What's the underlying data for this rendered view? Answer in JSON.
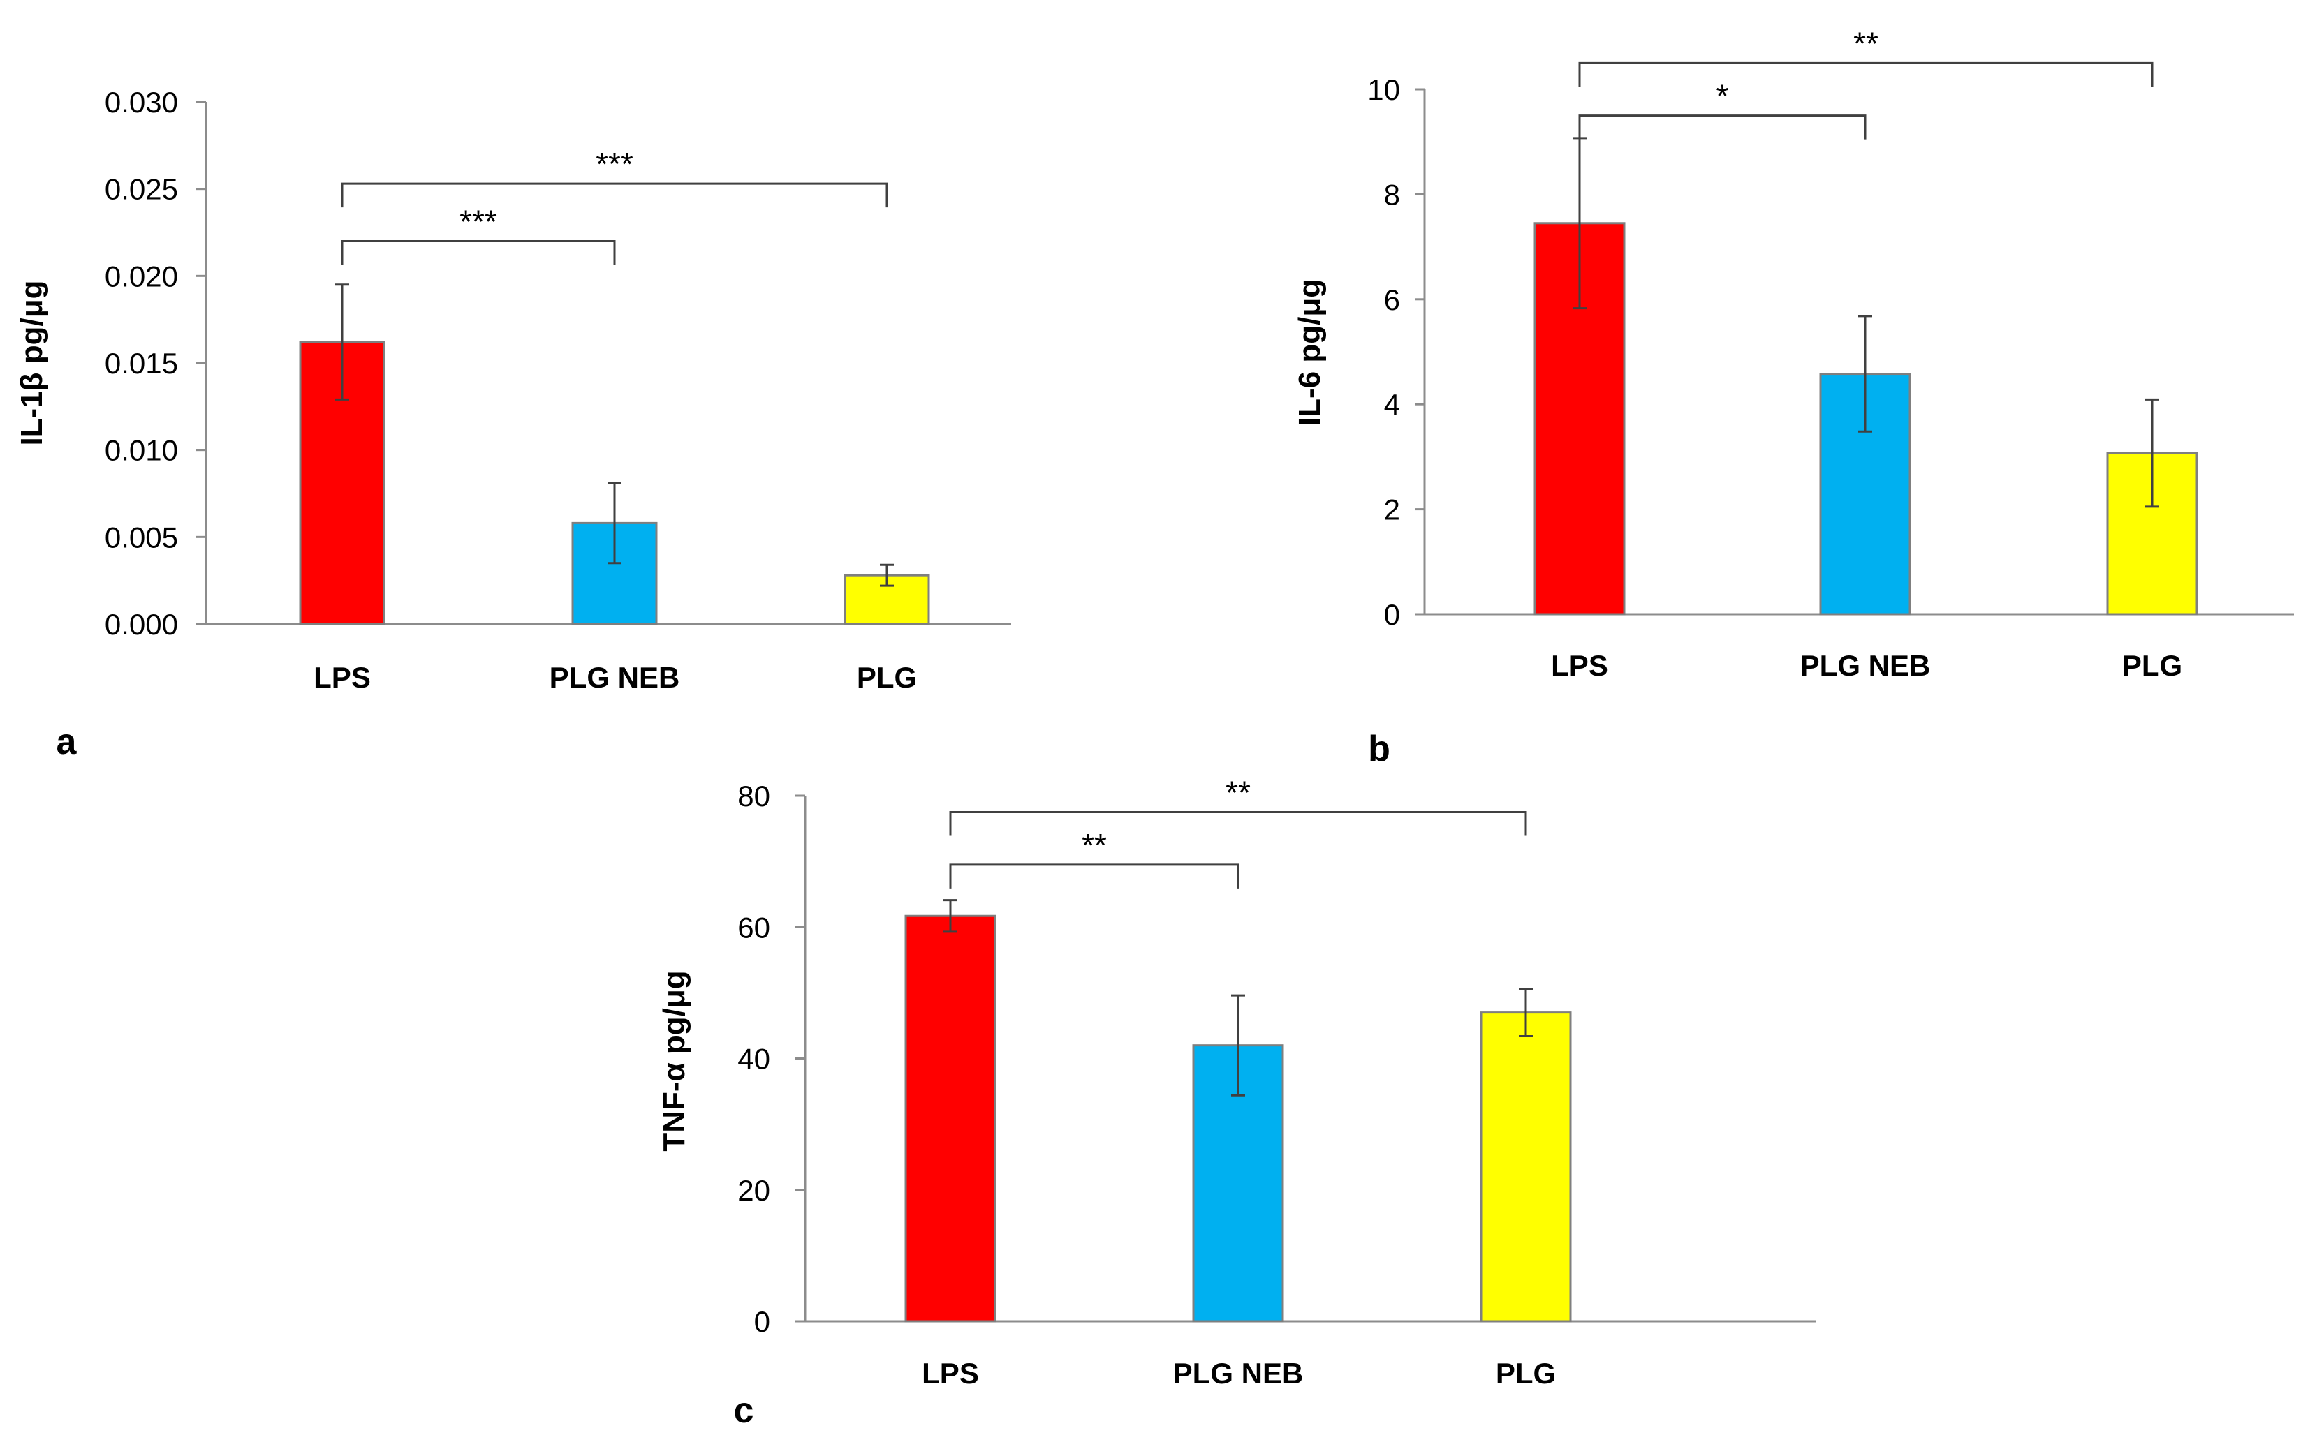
{
  "chart_data": [
    {
      "type": "bar",
      "panel_label": "a",
      "ylabel": "IL-1β pg/μg",
      "categories": [
        "LPS",
        "PLG NEB",
        "PLG"
      ],
      "values": [
        0.0162,
        0.0058,
        0.0028
      ],
      "errors": [
        0.0033,
        0.0023,
        0.0006
      ],
      "colors": [
        "#ff0000",
        "#00b0f0",
        "#ffff00"
      ],
      "ylim": [
        0,
        0.03
      ],
      "yticks": [
        0.0,
        0.005,
        0.01,
        0.015,
        0.02,
        0.025,
        0.03
      ],
      "ytick_labels": [
        "0.000",
        "0.005",
        "0.010",
        "0.015",
        "0.020",
        "0.025",
        "0.030"
      ],
      "significance": [
        {
          "from": 0,
          "to": 1,
          "label": "***",
          "y": 0.022
        },
        {
          "from": 0,
          "to": 2,
          "label": "***",
          "y": 0.0253
        }
      ]
    },
    {
      "type": "bar",
      "panel_label": "b",
      "ylabel": "IL-6 pg/μg",
      "categories": [
        "LPS",
        "PLG NEB",
        "PLG"
      ],
      "values": [
        7.45,
        4.58,
        3.07
      ],
      "errors": [
        1.62,
        1.1,
        1.02
      ],
      "colors": [
        "#ff0000",
        "#00b0f0",
        "#ffff00"
      ],
      "ylim": [
        0,
        10
      ],
      "yticks": [
        0,
        2,
        4,
        6,
        8,
        10
      ],
      "ytick_labels": [
        "0",
        "2",
        "4",
        "6",
        "8",
        "10"
      ],
      "significance": [
        {
          "from": 0,
          "to": 1,
          "label": "*",
          "y": 9.5
        },
        {
          "from": 0,
          "to": 2,
          "label": "**",
          "y": 10.5
        }
      ]
    },
    {
      "type": "bar",
      "panel_label": "c",
      "ylabel": "TNF-α pg/μg",
      "categories": [
        "LPS",
        "PLG NEB",
        "PLG"
      ],
      "values": [
        61.7,
        42.0,
        47.0
      ],
      "errors": [
        2.4,
        7.6,
        3.6
      ],
      "colors": [
        "#ff0000",
        "#00b0f0",
        "#ffff00"
      ],
      "ylim": [
        0,
        80
      ],
      "yticks": [
        0,
        20,
        40,
        60,
        80
      ],
      "ytick_labels": [
        "0",
        "20",
        "40",
        "60",
        "80"
      ],
      "significance": [
        {
          "from": 0,
          "to": 1,
          "label": "**",
          "y": 69.5
        },
        {
          "from": 0,
          "to": 2,
          "label": "**",
          "y": 77.5
        }
      ]
    }
  ]
}
